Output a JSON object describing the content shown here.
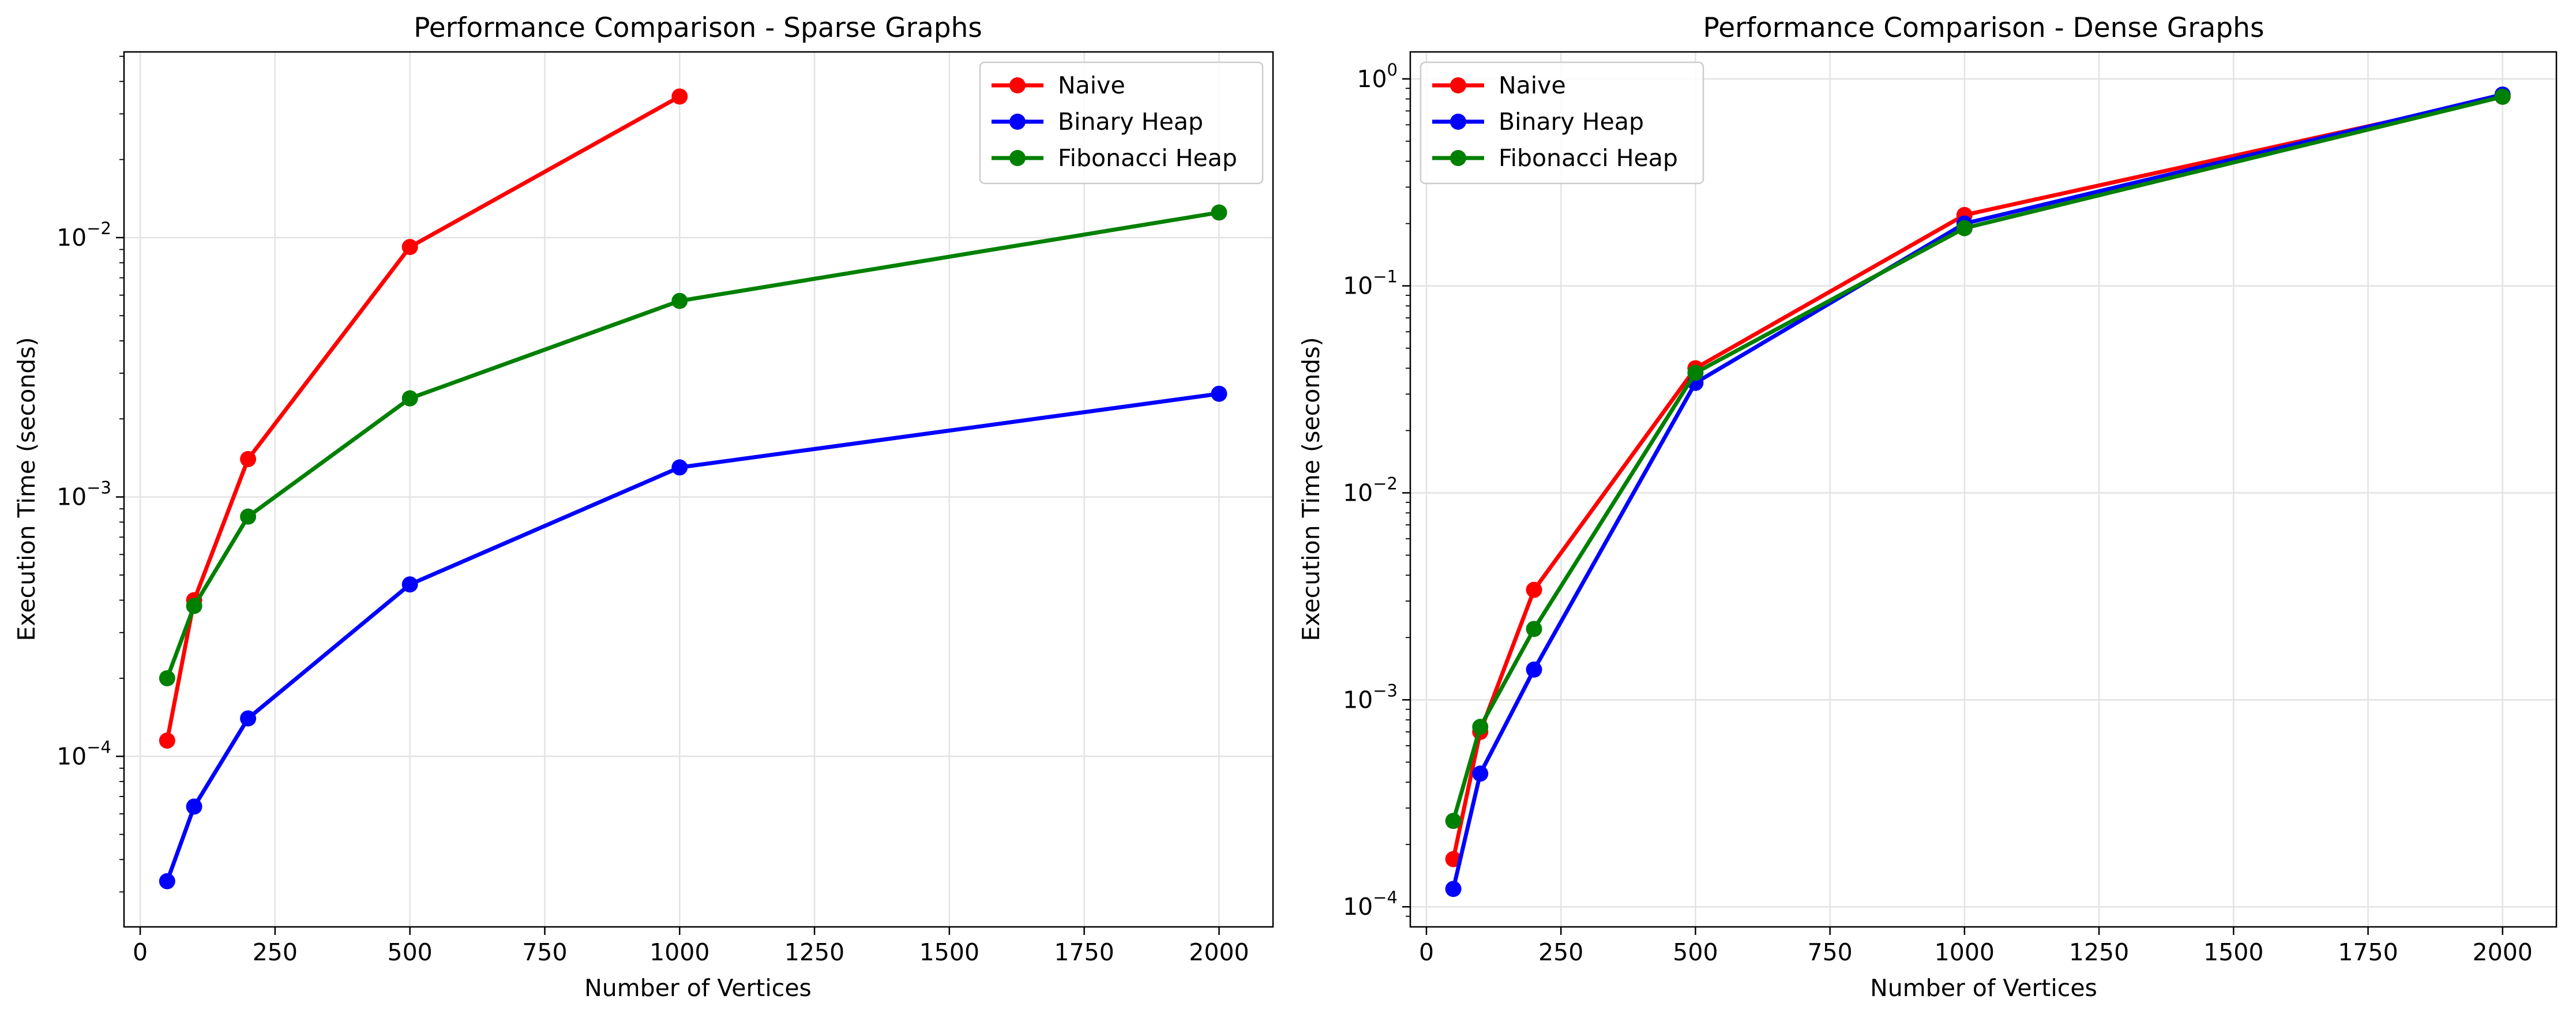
{
  "chart_data": [
    {
      "type": "line",
      "title": "Performance Comparison - Sparse Graphs",
      "xlabel": "Number of Vertices",
      "ylabel": "Execution Time (seconds)",
      "y_scale": "log",
      "xlim": [
        -30,
        2100
      ],
      "ylim": [
        2.2e-05,
        0.052
      ],
      "x_ticks": [
        0,
        250,
        500,
        750,
        1000,
        1250,
        1500,
        1750,
        2000
      ],
      "x_tick_labels": [
        "0",
        "250",
        "500",
        "750",
        "1000",
        "1250",
        "1500",
        "1750",
        "2000"
      ],
      "y_ticks": [
        0.0001,
        0.001,
        0.01
      ],
      "y_tick_labels": [
        {
          "base": "10",
          "exp": "−4"
        },
        {
          "base": "10",
          "exp": "−3"
        },
        {
          "base": "10",
          "exp": "−2"
        }
      ],
      "grid": true,
      "legend_position": "top-right",
      "series": [
        {
          "name": "Naive",
          "color": "#ff0000",
          "x": [
            50,
            100,
            200,
            500,
            1000
          ],
          "y": [
            0.000115,
            0.0004,
            0.0014,
            0.0092,
            0.035
          ]
        },
        {
          "name": "Binary Heap",
          "color": "#0000ff",
          "x": [
            50,
            100,
            200,
            500,
            1000,
            2000
          ],
          "y": [
            3.3e-05,
            6.4e-05,
            0.00014,
            0.00046,
            0.0013,
            0.0025
          ]
        },
        {
          "name": "Fibonacci Heap",
          "color": "#008000",
          "x": [
            50,
            100,
            200,
            500,
            1000,
            2000
          ],
          "y": [
            0.0002,
            0.00038,
            0.00084,
            0.0024,
            0.0057,
            0.0125
          ]
        }
      ]
    },
    {
      "type": "line",
      "title": "Performance Comparison - Dense Graphs",
      "xlabel": "Number of Vertices",
      "ylabel": "Execution Time (seconds)",
      "y_scale": "log",
      "xlim": [
        -30,
        2100
      ],
      "ylim": [
        8e-05,
        1.35
      ],
      "x_ticks": [
        0,
        250,
        500,
        750,
        1000,
        1250,
        1500,
        1750,
        2000
      ],
      "x_tick_labels": [
        "0",
        "250",
        "500",
        "750",
        "1000",
        "1250",
        "1500",
        "1750",
        "2000"
      ],
      "y_ticks": [
        0.0001,
        0.001,
        0.01,
        0.1,
        1
      ],
      "y_tick_labels": [
        {
          "base": "10",
          "exp": "−4"
        },
        {
          "base": "10",
          "exp": "−3"
        },
        {
          "base": "10",
          "exp": "−2"
        },
        {
          "base": "10",
          "exp": "−1"
        },
        {
          "base": "10",
          "exp": "0"
        }
      ],
      "grid": true,
      "legend_position": "top-left",
      "series": [
        {
          "name": "Naive",
          "color": "#ff0000",
          "x": [
            50,
            100,
            200,
            500,
            1000,
            2000
          ],
          "y": [
            0.00017,
            0.0007,
            0.0034,
            0.04,
            0.22,
            0.82
          ]
        },
        {
          "name": "Binary Heap",
          "color": "#0000ff",
          "x": [
            50,
            100,
            200,
            500,
            1000,
            2000
          ],
          "y": [
            0.000122,
            0.00044,
            0.0014,
            0.034,
            0.2,
            0.84
          ]
        },
        {
          "name": "Fibonacci Heap",
          "color": "#008000",
          "x": [
            50,
            100,
            200,
            500,
            1000,
            2000
          ],
          "y": [
            0.00026,
            0.00074,
            0.0022,
            0.038,
            0.19,
            0.82
          ]
        }
      ]
    }
  ]
}
